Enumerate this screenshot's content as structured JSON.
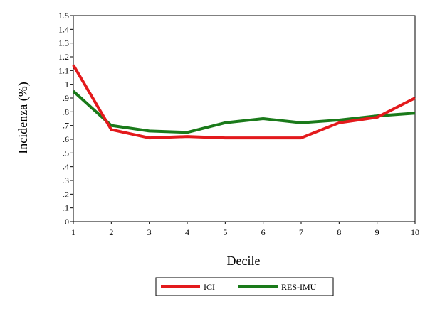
{
  "chart_data": {
    "type": "line",
    "xlabel": "Decile",
    "ylabel": "Incidenza (%)",
    "x": [
      1,
      2,
      3,
      4,
      5,
      6,
      7,
      8,
      9,
      10
    ],
    "xlim": [
      1,
      10
    ],
    "ylim": [
      0,
      1.5
    ],
    "y_ticks": [
      "0",
      ".1",
      ".2",
      ".3",
      ".4",
      ".5",
      ".6",
      ".7",
      ".8",
      ".9",
      "1",
      "1.1",
      "1.2",
      "1.3",
      "1.4",
      "1.5"
    ],
    "x_ticks": [
      "1",
      "2",
      "3",
      "4",
      "5",
      "6",
      "7",
      "8",
      "9",
      "10"
    ],
    "grid": false,
    "legend_position": "bottom",
    "series": [
      {
        "name": "ICI",
        "color": "#e31a1c",
        "values": [
          1.14,
          0.67,
          0.61,
          0.62,
          0.61,
          0.61,
          0.61,
          0.72,
          0.76,
          0.9
        ]
      },
      {
        "name": "RES-IMU",
        "color": "#1a7a1a",
        "values": [
          0.95,
          0.7,
          0.66,
          0.65,
          0.72,
          0.75,
          0.72,
          0.74,
          0.77,
          0.79
        ]
      }
    ]
  }
}
